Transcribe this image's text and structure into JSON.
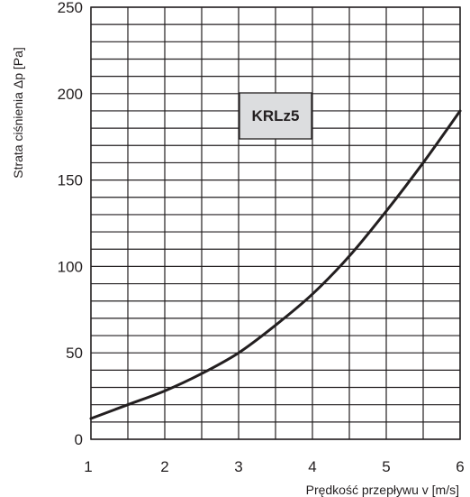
{
  "chart_data": {
    "type": "line",
    "title": "",
    "xlabel": "Prędkość przepływu v [m/s]",
    "ylabel": "Strata ciśnienia Δp [Pa]",
    "xlim": [
      1,
      6
    ],
    "ylim": [
      0,
      250
    ],
    "x_ticks": [
      1,
      2,
      3,
      4,
      5,
      6
    ],
    "x_tick_labels": [
      "1",
      "2",
      "3",
      "4",
      "5",
      "6"
    ],
    "y_ticks": [
      0,
      50,
      100,
      150,
      200,
      250
    ],
    "y_tick_labels": [
      "0",
      "50",
      "100",
      "150",
      "200",
      "250"
    ],
    "grid": true,
    "grid_x_step": 0.5,
    "grid_y_step": 10,
    "annotation": "KRLz5",
    "series": [
      {
        "x": [
          1,
          1.5,
          2,
          2.5,
          3,
          3.5,
          4,
          4.5,
          5,
          5.5,
          6
        ],
        "y": [
          12,
          20,
          28,
          38,
          50,
          66,
          84,
          106,
          132,
          160,
          190
        ]
      }
    ]
  },
  "colors": {
    "line": "#231f20",
    "grid": "#231f20",
    "text": "#231f20",
    "annotation_fill": "#dcdddf",
    "background": "#ffffff"
  }
}
